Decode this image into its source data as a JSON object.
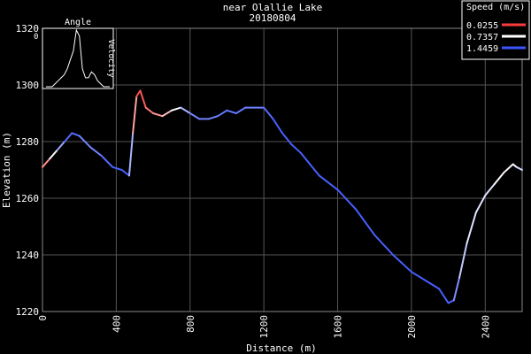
{
  "chart_data": {
    "type": "line",
    "title": "near Olallie Lake",
    "subtitle": "20180804",
    "xlabel": "Distance (m)",
    "ylabel": "Elevation (m)",
    "xlim": [
      0,
      2600
    ],
    "ylim": [
      1220,
      1320
    ],
    "xticks": [
      "0",
      "400",
      "800",
      "1200",
      "1600",
      "2000",
      "2400"
    ],
    "yticks": [
      "1220",
      "1240",
      "1260",
      "1280",
      "1300",
      "1320"
    ],
    "grid": true,
    "legend": {
      "title": "Speed (m/s)",
      "placement": "top-right",
      "entries": [
        {
          "label": "0.0255",
          "color": "#ff3b3b"
        },
        {
          "label": "0.7357",
          "color": "#ffffff"
        },
        {
          "label": "1.4459",
          "color": "#3a55ff"
        }
      ]
    },
    "series": [
      {
        "x": [
          0,
          40,
          80,
          120,
          160,
          200,
          260,
          320,
          380,
          430,
          470,
          490,
          510,
          530,
          560,
          600,
          650,
          700,
          750,
          800,
          850,
          900,
          950,
          1000,
          1050,
          1100,
          1150,
          1200,
          1250,
          1300,
          1350,
          1400,
          1500,
          1600,
          1700,
          1800,
          1900,
          2000,
          2100,
          2150,
          2200,
          2230,
          2260,
          2300,
          2350,
          2400,
          2450,
          2500,
          2550,
          2570,
          2600
        ],
        "elevation": [
          1271,
          1274,
          1277,
          1280,
          1283,
          1282,
          1278,
          1275,
          1271,
          1270,
          1268,
          1283,
          1296,
          1298,
          1292,
          1290,
          1289,
          1291,
          1292,
          1290,
          1288,
          1288,
          1289,
          1291,
          1290,
          1292,
          1292,
          1292,
          1288,
          1283,
          1279,
          1276,
          1268,
          1263,
          1256,
          1247,
          1240,
          1234,
          1230,
          1228,
          1223,
          1224,
          1232,
          1244,
          1255,
          1261,
          1265,
          1269,
          1272,
          1271,
          1270
        ],
        "speed": [
          0.05,
          0.6,
          0.9,
          1.3,
          1.4,
          1.3,
          1.2,
          1.3,
          1.4,
          1.4,
          1.4,
          0.7,
          0.1,
          0.05,
          0.2,
          0.3,
          0.4,
          0.6,
          0.9,
          1.2,
          1.3,
          1.2,
          1.3,
          1.3,
          1.3,
          1.3,
          1.2,
          1.3,
          1.4,
          1.4,
          1.4,
          1.4,
          1.4,
          1.4,
          1.4,
          1.4,
          1.4,
          1.4,
          1.4,
          1.4,
          1.4,
          1.4,
          1.0,
          0.9,
          0.8,
          0.9,
          0.8,
          0.7,
          0.7,
          0.8,
          1.0
        ]
      }
    ],
    "inset": {
      "type": "line",
      "title": "Angle",
      "left_label": "0",
      "right_label": "Velocity",
      "y": [
        0,
        0,
        0,
        1,
        2,
        3,
        4,
        6,
        9,
        12,
        19,
        17,
        6,
        3,
        3,
        5,
        4,
        2,
        1,
        0,
        0,
        0
      ]
    }
  }
}
